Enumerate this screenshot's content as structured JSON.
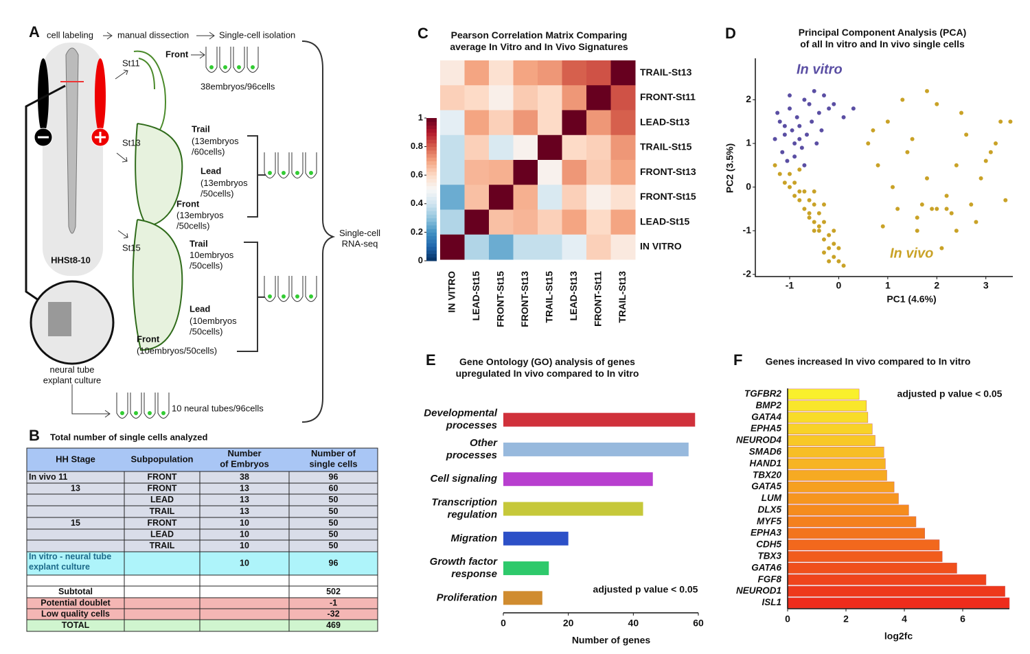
{
  "panels": [
    "A",
    "B",
    "C",
    "D",
    "E",
    "F"
  ],
  "panel_a": {
    "steps": [
      "cell labeling",
      "manual dissection",
      "Single-cell isolation"
    ],
    "labels": [
      "St11",
      "Front",
      "38embryos/96cells",
      "St13",
      "Trail",
      "(13embryos\n/60cells)",
      "Lead",
      "(13embryos\n/50cells)",
      "Front",
      "(13embryos\n/50cells)",
      "St15",
      "Trail",
      "10embryos\n/50cells)",
      "Lead",
      "(10embryos\n/50cells)",
      "Front",
      "(10embryos/50cells)",
      "HHSt8-10",
      "neural tube\nexplant culture",
      "10 neural tubes/96cells",
      "Single-cell\nRNA-seq"
    ]
  },
  "table": {
    "title": "Total number of single cells analyzed",
    "header": [
      "HH Stage",
      "Subpopulation",
      "Number\nof Embryos",
      "Number of\nsingle cells"
    ],
    "rows": [
      [
        "In vivo  11",
        "FRONT",
        "38",
        "96"
      ],
      [
        "13",
        "FRONT",
        "13",
        "60"
      ],
      [
        null,
        "LEAD",
        "13",
        "50"
      ],
      [
        null,
        "TRAIL",
        "13",
        "50"
      ],
      [
        "15",
        "FRONT",
        "10",
        "50"
      ],
      [
        null,
        "LEAD",
        "10",
        "50"
      ],
      [
        null,
        "TRAIL",
        "10",
        "50"
      ],
      [
        "In vitro - neural tube\nexplant culture",
        null,
        "10",
        "96"
      ],
      [
        null,
        null,
        null,
        null
      ],
      [
        "Subtotal",
        null,
        null,
        "502"
      ],
      [
        "Potential doublet",
        null,
        null,
        "-1"
      ],
      [
        "Low quality cells",
        null,
        null,
        "-32"
      ],
      [
        "TOTAL",
        null,
        null,
        "469"
      ]
    ]
  },
  "chart_data": [
    {
      "type": "heatmap",
      "title": "Pearson Correlation Matrix Comparing\naverage In Vitro and In Vivo Signatures",
      "rows": [
        "TRAIL-St13",
        "FRONT-St11",
        "LEAD-St13",
        "TRAIL-St15",
        "FRONT-St13",
        "FRONT-St15",
        "LEAD-St15",
        "IN VITRO"
      ],
      "columns": [
        "IN VITRO",
        "LEAD-St15",
        "FRONT-St15",
        "FRONT-St13",
        "TRAIL-St15",
        "LEAD-St13",
        "FRONT-St11",
        "TRAIL-St13"
      ],
      "values": [
        [
          0.55,
          0.7,
          0.58,
          0.7,
          0.72,
          0.8,
          0.82,
          1
        ],
        [
          0.62,
          0.6,
          0.53,
          0.63,
          0.6,
          0.72,
          1,
          0.82
        ],
        [
          0.45,
          0.7,
          0.62,
          0.72,
          0.6,
          1,
          0.72,
          0.8
        ],
        [
          0.38,
          0.62,
          0.42,
          0.52,
          1,
          0.6,
          0.62,
          0.72
        ],
        [
          0.38,
          0.67,
          0.68,
          1,
          0.52,
          0.72,
          0.63,
          0.7
        ],
        [
          0.25,
          0.65,
          1,
          0.68,
          0.42,
          0.62,
          0.53,
          0.58
        ],
        [
          0.35,
          1,
          0.65,
          0.67,
          0.62,
          0.7,
          0.6,
          0.7
        ],
        [
          1,
          0.35,
          0.25,
          0.38,
          0.38,
          0.45,
          0.62,
          0.55
        ]
      ],
      "colormap": "RdBu_r",
      "clim": [
        0,
        1
      ],
      "colorbar_ticks": [
        0,
        0.2,
        0.4,
        0.6,
        0.8,
        1
      ]
    },
    {
      "type": "scatter",
      "title": "Principal Component Analysis (PCA)\nof all In vitro and In vivo single cells",
      "xlabel": "PC1 (4.6%)",
      "ylabel": "PC2 (3.5%)",
      "xlim": [
        -1.7,
        3.55
      ],
      "ylim": [
        -2.05,
        2.95
      ],
      "xticks": [
        -1,
        0,
        1,
        2,
        3
      ],
      "yticks": [
        -2,
        -1,
        0,
        1,
        2
      ],
      "series": [
        {
          "name": "In vitro",
          "color": "#5a4ea3",
          "x": [
            -1.2,
            -1.1,
            -1.0,
            -0.9,
            -0.8,
            -0.7,
            -1.3,
            -1.15,
            -0.95,
            -0.85,
            -0.6,
            -0.5,
            -0.4,
            -0.3,
            -0.2,
            -1.05,
            -0.75,
            -0.65,
            -0.55,
            -0.45,
            -1.25,
            -0.9,
            -0.7,
            -0.1,
            0.1,
            0.3,
            -1.0,
            -0.8,
            -0.35,
            -1.1
          ],
          "values": [
            1.5,
            1.2,
            1.8,
            1.0,
            1.4,
            2.0,
            1.1,
            0.8,
            1.3,
            1.6,
            1.9,
            2.2,
            1.7,
            2.1,
            1.8,
            0.6,
            0.9,
            1.2,
            1.5,
            1.0,
            1.7,
            0.7,
            0.5,
            1.9,
            1.6,
            1.8,
            2.1,
            1.1,
            1.3,
            1.4
          ]
        },
        {
          "name": "In vivo",
          "color": "#c9a227",
          "x": [
            -1.3,
            -1.2,
            -1.1,
            -1.0,
            -0.9,
            -0.8,
            -0.7,
            -0.6,
            -0.5,
            -0.4,
            -0.3,
            -0.2,
            -0.1,
            0.0,
            0.1,
            -1.0,
            -0.9,
            -0.8,
            -0.7,
            -0.6,
            -0.5,
            -0.4,
            -0.3,
            -0.2,
            -0.1,
            -0.6,
            -0.5,
            -0.3,
            -0.4,
            -0.2,
            0.0,
            -0.8,
            -0.1,
            -0.3,
            -0.5,
            0.6,
            0.8,
            1.0,
            1.2,
            1.4,
            1.6,
            1.8,
            2.0,
            2.2,
            2.4,
            2.6,
            2.8,
            3.0,
            3.2,
            3.4,
            0.9,
            1.3,
            1.7,
            2.1,
            2.5,
            2.9,
            3.3,
            1.1,
            1.5,
            1.9,
            2.3,
            2.7,
            3.1,
            1.8,
            2.2,
            2.0,
            1.6,
            2.4,
            0.7,
            3.5
          ],
          "values": [
            0.5,
            0.3,
            0.1,
            0.0,
            -0.2,
            -0.3,
            -0.5,
            -0.6,
            -0.8,
            -1.0,
            -1.2,
            -1.4,
            -1.6,
            -1.7,
            -1.8,
            0.3,
            0.1,
            -0.1,
            -0.1,
            -0.3,
            -0.4,
            -0.6,
            -0.8,
            -1.1,
            -1.3,
            -0.7,
            -1.0,
            -1.5,
            -0.9,
            -1.7,
            -1.4,
            0.4,
            -1.0,
            -0.4,
            -0.1,
            1.0,
            0.5,
            1.5,
            -0.5,
            0.8,
            -1.0,
            0.2,
            1.9,
            -0.5,
            0.5,
            1.2,
            -0.8,
            0.6,
            1.0,
            -0.3,
            -0.9,
            2.0,
            -0.4,
            -1.4,
            1.7,
            0.2,
            1.5,
            0.0,
            1.1,
            -0.5,
            -0.6,
            -0.4,
            0.8,
            2.2,
            -0.2,
            -0.5,
            -0.7,
            -1.0,
            1.3,
            1.5
          ]
        }
      ]
    },
    {
      "type": "hbar",
      "title": "Gene Ontology (GO) analysis of genes\nupregulated In vivo compared to In vitro",
      "categories": [
        "Developmental\nprocesses",
        "Other\nprocesses",
        "Cell signaling",
        "Transcription\nregulation",
        "Migration",
        "Growth factor\nresponse",
        "Proliferation"
      ],
      "values": [
        59,
        57,
        46,
        43,
        20,
        14,
        12
      ],
      "colors": [
        "#d0313b",
        "#97b9dd",
        "#b83fcf",
        "#c6c83a",
        "#2c50c7",
        "#2ec96b",
        "#d08c2f"
      ],
      "xlabel": "Number of genes",
      "xlim": [
        0,
        60
      ],
      "xticks": [
        0,
        20,
        40,
        60
      ],
      "annotation": "adjusted p value < 0.05"
    },
    {
      "type": "hbar",
      "title": "Genes increased In vivo compared to In vitro",
      "categories": [
        "TGFBR2",
        "BMP2",
        "GATA4",
        "EPHA5",
        "NEUROD4",
        "SMAD6",
        "HAND1",
        "TBX20",
        "GATA5",
        "LUM",
        "DLX5",
        "MYF5",
        "EPHA3",
        "CDH5",
        "TBX3",
        "GATA6",
        "FGF8",
        "NEUROD1",
        "ISL1"
      ],
      "values": [
        2.45,
        2.7,
        2.75,
        2.9,
        3.0,
        3.3,
        3.35,
        3.4,
        3.65,
        3.8,
        4.15,
        4.4,
        4.7,
        5.2,
        5.3,
        5.8,
        6.8,
        7.45,
        7.6
      ],
      "colors": [
        "#f9f02c",
        "#f9e62b",
        "#f8dc29",
        "#f8d228",
        "#f8c826",
        "#f7be25",
        "#f7b423",
        "#f6aa22",
        "#f6a020",
        "#f6961f",
        "#f58c1e",
        "#f4801d",
        "#f3741d",
        "#f2681d",
        "#f15c1c",
        "#f0501c",
        "#ef441c",
        "#ee381c",
        "#ee2c1c"
      ],
      "xlabel": "log2fc",
      "xlim": [
        0,
        7.6
      ],
      "xticks": [
        0,
        2,
        4,
        6
      ],
      "annotation": "adjusted p value < 0.05"
    }
  ]
}
